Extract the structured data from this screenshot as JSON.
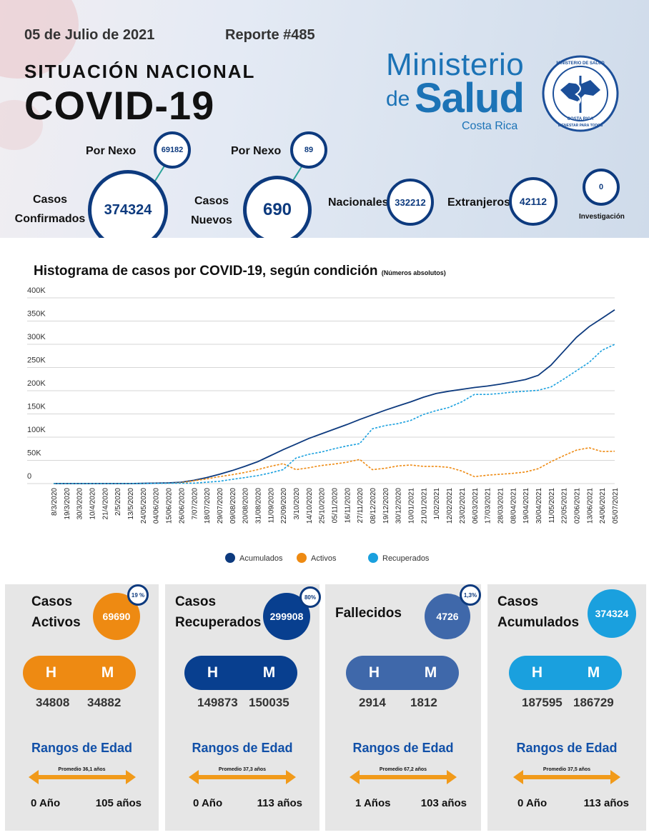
{
  "header": {
    "date": "05 de Julio de 2021",
    "report": "Reporte #485",
    "subtitle": "SITUACIÓN NACIONAL",
    "title": "COVID-19"
  },
  "logo": {
    "line1": "Ministerio",
    "line2a": "de",
    "line2b": "Salud",
    "line3": "Costa Rica",
    "seal_top": "MINISTERIO DE SALUD",
    "seal_mid": "COSTA RICA",
    "seal_bottom": "BIENESTAR PARA TODOS"
  },
  "stats": {
    "confirmed_label_1": "Casos",
    "confirmed_label_2": "Confirmados",
    "confirmed_value": "374324",
    "nexo1_label": "Por Nexo",
    "nexo1_value": "69182",
    "new_label_1": "Casos",
    "new_label_2": "Nuevos",
    "new_value": "690",
    "nexo2_label": "Por Nexo",
    "nexo2_value": "89",
    "national_label": "Nacionales",
    "national_value": "332212",
    "foreign_label": "Extranjeros",
    "foreign_value": "42112",
    "investigation_label": "Investigación",
    "investigation_value": "0"
  },
  "chart_title": "Histograma de casos por COVID-19, según condición",
  "chart_subtitle": "(Números absolutos)",
  "colors": {
    "dark_blue": "#0d3a7e",
    "orange": "#ee8a12",
    "light_blue": "#1aa0de",
    "steel_blue": "#3f68aa",
    "navy": "#083f8f"
  },
  "chart_data": {
    "type": "line",
    "ylim": [
      0,
      400000
    ],
    "yticks": [
      "0",
      "50K",
      "100K",
      "150K",
      "200K",
      "250K",
      "300K",
      "350K",
      "400K"
    ],
    "x": [
      "8/3/2020",
      "19/3/2020",
      "30/3/2020",
      "10/4/2020",
      "21/4/2020",
      "2/5/2020",
      "13/5/2020",
      "24/05/2020",
      "04/06/2020",
      "15/06/2020",
      "26/06/2020",
      "7/07/2020",
      "18/07/2020",
      "29/07/2020",
      "09/08/2020",
      "20/08/2020",
      "31/08/2020",
      "11/09/2020",
      "22/09/2020",
      "3/10/2020",
      "14/10/2020",
      "25/10/2020",
      "05/11/2020",
      "16/11/2020",
      "27/11/2020",
      "08/12/2020",
      "19/12/2020",
      "30/12/2020",
      "10/01/2021",
      "21/01/2021",
      "1/02/2021",
      "12/02/2021",
      "23/02/2021",
      "06/03/2021",
      "17/03/2021",
      "28/03/2021",
      "08/04/2021",
      "19/04/2021",
      "30/04/2021",
      "11/05/2021",
      "22/05/2021",
      "02/06/2021",
      "13/06/2021",
      "24/06/2021",
      "05/07/2021"
    ],
    "series": [
      {
        "name": "Acumulados",
        "color": "#0d3a7e",
        "dashed": false,
        "values": [
          0,
          0,
          0,
          0,
          0,
          0,
          0,
          500,
          1000,
          1500,
          3000,
          7000,
          13000,
          20000,
          28000,
          37000,
          47000,
          60000,
          73000,
          85000,
          97000,
          107000,
          117000,
          127000,
          138000,
          148000,
          158000,
          167000,
          176000,
          186000,
          194000,
          199000,
          203000,
          207000,
          210000,
          214000,
          219000,
          224000,
          233000,
          255000,
          285000,
          315000,
          338000,
          356000,
          374324
        ]
      },
      {
        "name": "Activos",
        "color": "#ee8a12",
        "dashed": true,
        "values": [
          0,
          0,
          0,
          0,
          0,
          0,
          0,
          300,
          500,
          800,
          2000,
          6000,
          10000,
          15000,
          19000,
          24000,
          30000,
          37000,
          43000,
          30000,
          34000,
          39000,
          42000,
          46000,
          52000,
          30000,
          33000,
          38000,
          40000,
          37000,
          37000,
          35000,
          27000,
          15000,
          18000,
          20000,
          22000,
          25000,
          32000,
          47000,
          60000,
          72000,
          77000,
          69000,
          69690
        ]
      },
      {
        "name": "Recuperados",
        "color": "#1aa0de",
        "dashed": true,
        "values": [
          0,
          0,
          0,
          0,
          0,
          0,
          0,
          200,
          500,
          700,
          1000,
          1000,
          3000,
          5000,
          9000,
          13000,
          17000,
          23000,
          30000,
          55000,
          63000,
          68000,
          75000,
          81000,
          86000,
          118000,
          125000,
          129000,
          136000,
          149000,
          157000,
          164000,
          176000,
          192000,
          192000,
          194000,
          197000,
          199000,
          201000,
          208000,
          225000,
          243000,
          261000,
          287000,
          299908
        ]
      }
    ]
  },
  "panels": [
    {
      "title_1": "Casos",
      "title_2": "Activos",
      "value": "69690",
      "pct": "19 %",
      "h": "H",
      "m": "M",
      "h_value": "34808",
      "m_value": "34882",
      "ranges_label": "Rangos de Edad",
      "avg": "Promedio 36,1 años",
      "min_age": "0 Año",
      "max_age": "105 años"
    },
    {
      "title_1": "Casos",
      "title_2": "Recuperados",
      "value": "299908",
      "pct": "80%",
      "h": "H",
      "m": "M",
      "h_value": "149873",
      "m_value": "150035",
      "ranges_label": "Rangos de Edad",
      "avg": "Promedio 37,3 años",
      "min_age": "0 Año",
      "max_age": "113 años"
    },
    {
      "title_1": "Fallecidos",
      "title_2": "",
      "value": "4726",
      "pct": "1,3%",
      "h": "H",
      "m": "M",
      "h_value": "2914",
      "m_value": "1812",
      "ranges_label": "Rangos de Edad",
      "avg": "Promedio 67,2 años",
      "min_age": "1 Años",
      "max_age": "103 años"
    },
    {
      "title_1": "Casos",
      "title_2": "Acumulados",
      "value": "374324",
      "pct": "",
      "h": "H",
      "m": "M",
      "h_value": "187595",
      "m_value": "186729",
      "ranges_label": "Rangos de Edad",
      "avg": "Promedio 37,5 años",
      "min_age": "0 Año",
      "max_age": "113 años"
    }
  ]
}
